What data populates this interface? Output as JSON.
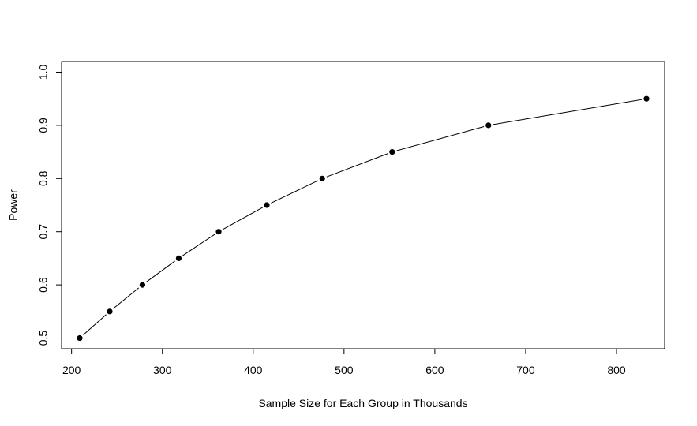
{
  "chart_data": {
    "type": "line",
    "title": "",
    "xlabel": "Sample Size for Each Group in Thousands",
    "ylabel": "Power",
    "x": [
      209,
      242,
      278,
      318,
      362,
      415,
      476,
      553,
      659,
      833
    ],
    "y": [
      0.5,
      0.55,
      0.6,
      0.65,
      0.7,
      0.75,
      0.8,
      0.85,
      0.9,
      0.95
    ],
    "xlim": [
      189,
      853
    ],
    "ylim": [
      0.48,
      1.02
    ],
    "xticks": [
      200,
      300,
      400,
      500,
      600,
      700,
      800
    ],
    "yticks": [
      0.5,
      0.6,
      0.7,
      0.8,
      0.9,
      1.0
    ],
    "xtick_labels": [
      "200",
      "300",
      "400",
      "500",
      "600",
      "700",
      "800"
    ],
    "ytick_labels": [
      "0.5",
      "0.6",
      "0.7",
      "0.8",
      "0.9",
      "1.0"
    ],
    "markers": "filled-circle",
    "grid": false,
    "line_color": "#000000",
    "marker_color": "#000000"
  }
}
